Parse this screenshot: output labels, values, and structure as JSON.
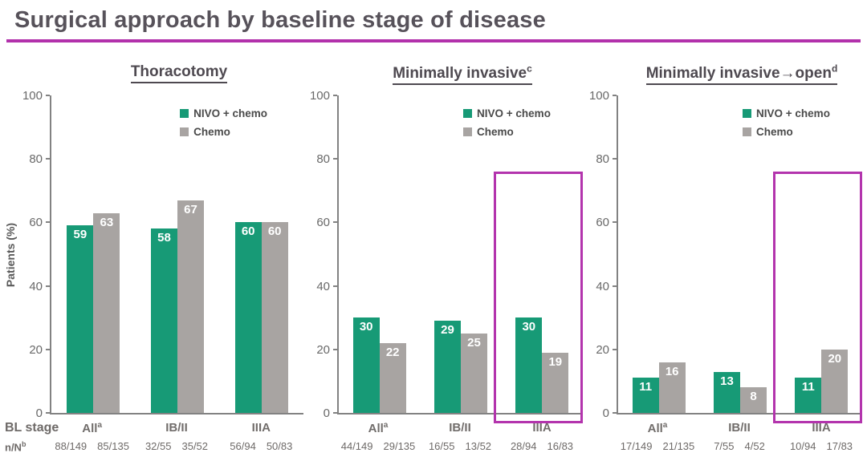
{
  "page": {
    "title": "Surgical approach by baseline stage of disease"
  },
  "colors": {
    "nivo_green": "#179a76",
    "chemo_gray": "#a8a4a2",
    "title_underline": "#b231ab",
    "highlight_box": "#b334ad"
  },
  "axis": {
    "ylabel": "Patients (%)",
    "ticks": [
      0,
      20,
      40,
      60,
      80,
      100
    ],
    "ymax": 100
  },
  "legend": {
    "items": [
      {
        "label": "NIVO + chemo",
        "color_key": "nivo_green"
      },
      {
        "label": "Chemo",
        "color_key": "chemo_gray"
      }
    ]
  },
  "row_labels": {
    "bl_stage": "BL stage",
    "n_over_n": "n/N",
    "n_over_n_sup": "b"
  },
  "chart_data": [
    {
      "type": "bar",
      "title": "Thoracotomy",
      "title_sup": "",
      "categories": [
        "All",
        "IB/II",
        "IIIA"
      ],
      "category_sups": [
        "a",
        "",
        ""
      ],
      "series": [
        {
          "name": "NIVO + chemo",
          "values": [
            59,
            58,
            60
          ],
          "n_over_n": [
            "88/149",
            "32/55",
            "56/94"
          ]
        },
        {
          "name": "Chemo",
          "values": [
            63,
            67,
            60
          ],
          "n_over_n": [
            "85/135",
            "35/52",
            "50/83"
          ]
        }
      ],
      "ylabel": "Patients (%)",
      "ylim": [
        0,
        100
      ],
      "legend_position": "upper right",
      "highlight_group_index": null,
      "highlight_top_value": null
    },
    {
      "type": "bar",
      "title": "Minimally invasive",
      "title_sup": "c",
      "categories": [
        "All",
        "IB/II",
        "IIIA"
      ],
      "category_sups": [
        "a",
        "",
        ""
      ],
      "series": [
        {
          "name": "NIVO + chemo",
          "values": [
            30,
            29,
            30
          ],
          "n_over_n": [
            "44/149",
            "16/55",
            "28/94"
          ]
        },
        {
          "name": "Chemo",
          "values": [
            22,
            25,
            19
          ],
          "n_over_n": [
            "29/135",
            "13/52",
            "16/83"
          ]
        }
      ],
      "ylabel": "",
      "ylim": [
        0,
        100
      ],
      "legend_position": "upper right",
      "highlight_group_index": 2,
      "highlight_top_value": 76
    },
    {
      "type": "bar",
      "title": "Minimally invasive→open",
      "title_sup": "d",
      "categories": [
        "All",
        "IB/II",
        "IIIA"
      ],
      "category_sups": [
        "a",
        "",
        ""
      ],
      "series": [
        {
          "name": "NIVO + chemo",
          "values": [
            11,
            13,
            11
          ],
          "n_over_n": [
            "17/149",
            "7/55",
            "10/94"
          ]
        },
        {
          "name": "Chemo",
          "values": [
            16,
            8,
            20
          ],
          "n_over_n": [
            "21/135",
            "4/52",
            "17/83"
          ]
        }
      ],
      "ylabel": "",
      "ylim": [
        0,
        100
      ],
      "legend_position": "upper right",
      "highlight_group_index": 2,
      "highlight_top_value": 76
    }
  ]
}
